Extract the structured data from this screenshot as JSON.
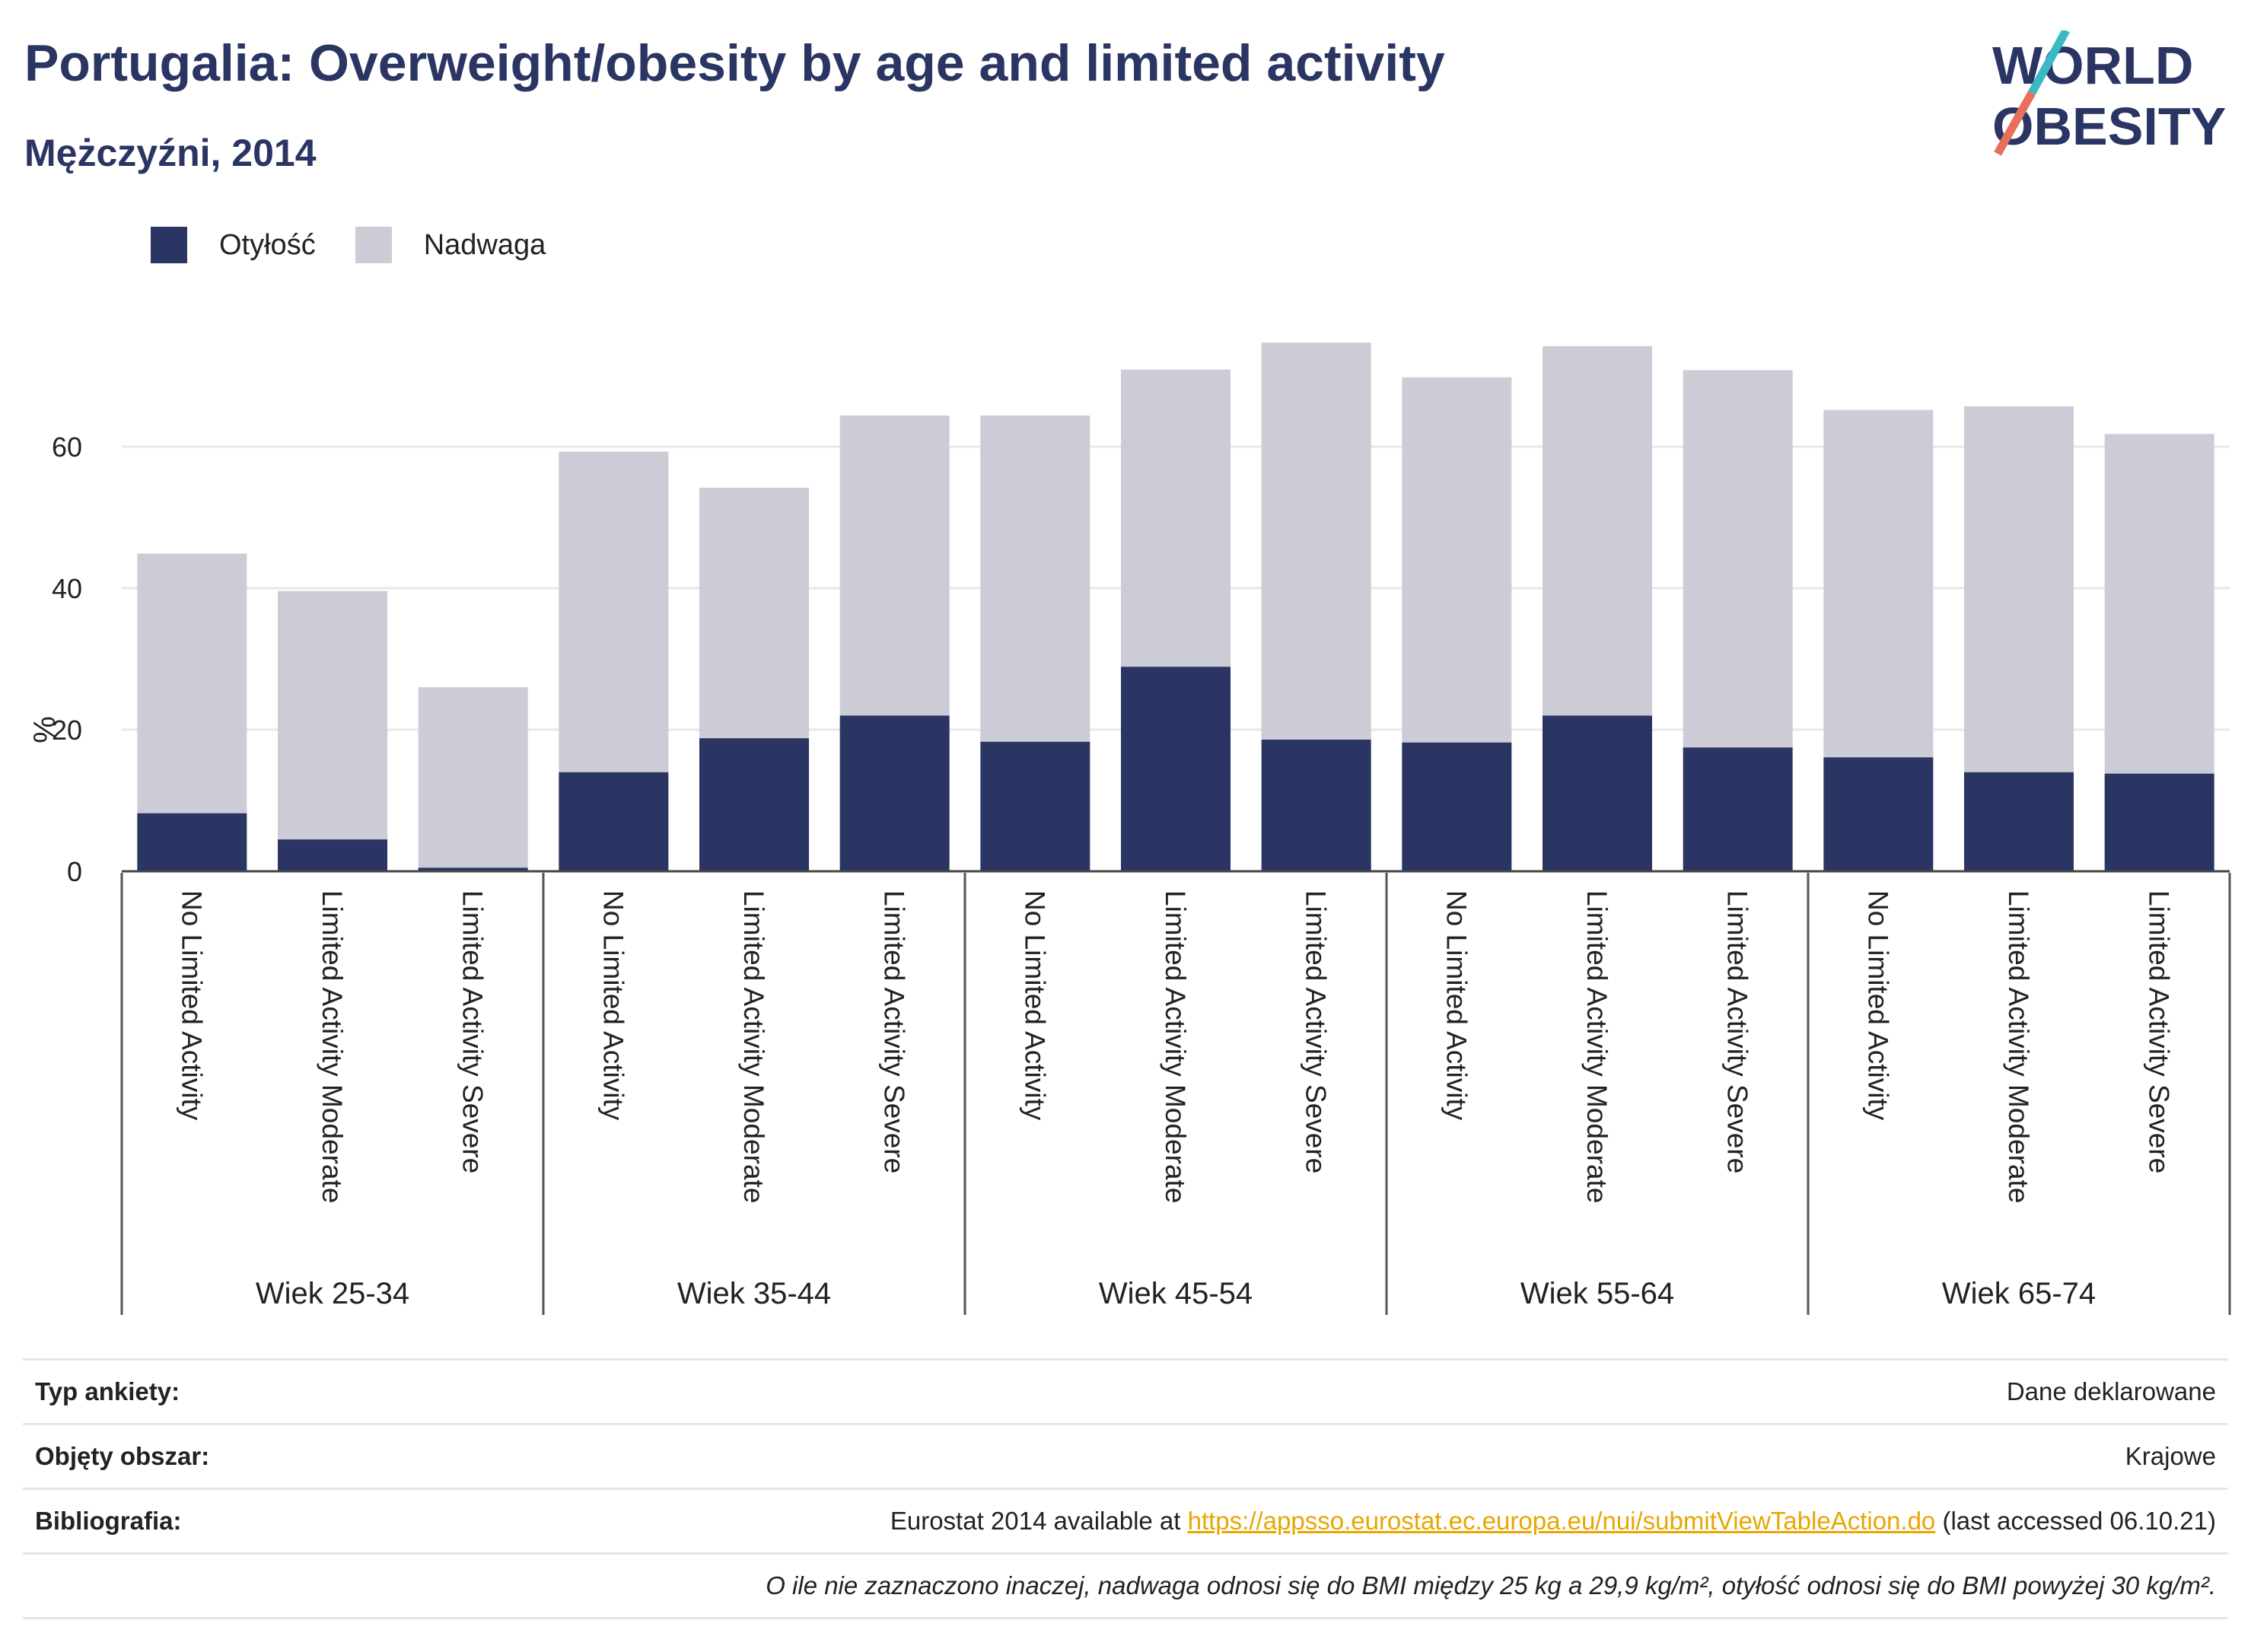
{
  "header": {
    "title": "Portugalia: Overweight/obesity by age and limited activity",
    "subtitle": "Mężczyźni, 2014"
  },
  "logo": {
    "line1": "WORLD",
    "line2": "OBESITY"
  },
  "colors": {
    "obesity": "#2b3563",
    "overweight": "#cbccd6",
    "title": "#2b3563",
    "link": "#e8a600",
    "logo_teal": "#3bb8c4",
    "logo_red": "#e8705a"
  },
  "legend": {
    "obesity": "Otyłość",
    "overweight": "Nadwaga"
  },
  "chart_data": {
    "type": "bar",
    "stacked": true,
    "ylabel": "%",
    "ylim": [
      0,
      80
    ],
    "yticks": [
      0,
      20,
      40,
      60
    ],
    "grid": true,
    "legend_position": "top-left",
    "groups": [
      "Wiek 25-34",
      "Wiek 35-44",
      "Wiek 45-54",
      "Wiek 55-64",
      "Wiek 65-74"
    ],
    "categories": [
      "No Limited Activity",
      "Limited Activity Moderate",
      "Limited Activity Severe"
    ],
    "series": [
      {
        "name": "Otyłość",
        "values": [
          [
            8.2,
            4.5,
            0.5
          ],
          [
            14.0,
            18.8,
            22.0
          ],
          [
            18.3,
            28.9,
            18.6
          ],
          [
            18.2,
            22.0,
            17.5
          ],
          [
            16.1,
            14.0,
            13.8
          ]
        ]
      },
      {
        "name": "Nadwaga",
        "values": [
          [
            36.7,
            35.1,
            25.5
          ],
          [
            45.3,
            35.4,
            42.4
          ],
          [
            46.1,
            42.0,
            56.1
          ],
          [
            51.6,
            52.2,
            53.3
          ],
          [
            49.1,
            51.7,
            48.0
          ]
        ]
      }
    ]
  },
  "info": {
    "survey_label": "Typ ankiety:",
    "survey_value": "Dane deklarowane",
    "area_label": "Objęty obszar:",
    "area_value": "Krajowe",
    "biblio_label": "Bibliografia:",
    "biblio_prefix": "Eurostat 2014 available at ",
    "biblio_link": "https://appsso.eurostat.ec.europa.eu/nui/submitViewTableAction.do",
    "biblio_suffix": " (last accessed 06.10.21)",
    "note": "O ile nie zaznaczono inaczej, nadwaga odnosi się do BMI między 25 kg a 29,9 kg/m², otyłość odnosi się do BMI powyżej 30 kg/m²."
  }
}
